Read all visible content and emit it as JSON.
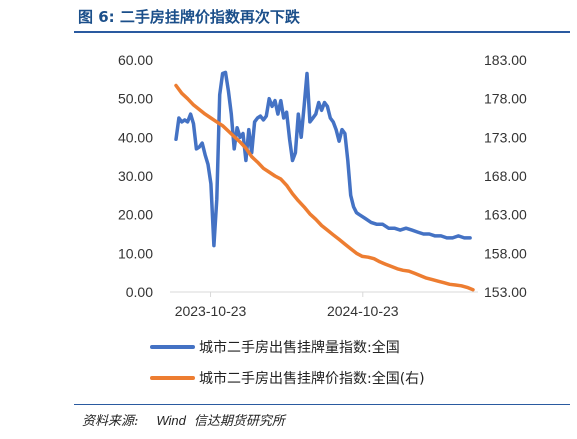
{
  "title": "图 6:  二手房挂牌价指数再次下跌",
  "source": {
    "label": "资料来源:",
    "provider": "Wind",
    "org": "信达期货研究所"
  },
  "chart_data": {
    "type": "line",
    "x_range": [
      "2023-08-01",
      "2025-07-15"
    ],
    "x_ticks": [
      "2023-10-23",
      "2024-10-23"
    ],
    "y_left": {
      "range": [
        0,
        60
      ],
      "ticks": [
        "0.00",
        "10.00",
        "20.00",
        "30.00",
        "40.00",
        "50.00",
        "60.00"
      ]
    },
    "y_right": {
      "range": [
        153,
        183
      ],
      "ticks": [
        "153.00",
        "158.00",
        "163.00",
        "168.00",
        "173.00",
        "178.00",
        "183.00"
      ]
    },
    "grid": false,
    "legend_position": "bottom",
    "series": [
      {
        "name": "城市二手房出售挂牌量指数:全国",
        "axis": "left",
        "color": "#4472c4",
        "points": [
          [
            "2023-08-01",
            39.5
          ],
          [
            "2023-08-08",
            45
          ],
          [
            "2023-08-15",
            44
          ],
          [
            "2023-08-22",
            44.5
          ],
          [
            "2023-08-29",
            44
          ],
          [
            "2023-09-05",
            46
          ],
          [
            "2023-09-12",
            43.5
          ],
          [
            "2023-09-19",
            37
          ],
          [
            "2023-09-26",
            37.5
          ],
          [
            "2023-10-03",
            38.5
          ],
          [
            "2023-10-10",
            35.5
          ],
          [
            "2023-10-17",
            33
          ],
          [
            "2023-10-24",
            28
          ],
          [
            "2023-10-31",
            12
          ],
          [
            "2023-11-07",
            24
          ],
          [
            "2023-11-14",
            51
          ],
          [
            "2023-11-21",
            56.5
          ],
          [
            "2023-11-28",
            56.8
          ],
          [
            "2023-12-05",
            52
          ],
          [
            "2023-12-12",
            46
          ],
          [
            "2023-12-19",
            37
          ],
          [
            "2023-12-26",
            42.5
          ],
          [
            "2024-01-02",
            40
          ],
          [
            "2024-01-09",
            41
          ],
          [
            "2024-01-16",
            34
          ],
          [
            "2024-01-23",
            42
          ],
          [
            "2024-01-30",
            36
          ],
          [
            "2024-02-06",
            44
          ],
          [
            "2024-02-13",
            45
          ],
          [
            "2024-02-20",
            45.5
          ],
          [
            "2024-02-27",
            44.5
          ],
          [
            "2024-03-05",
            45.5
          ],
          [
            "2024-03-12",
            50
          ],
          [
            "2024-03-19",
            48
          ],
          [
            "2024-03-26",
            49.5
          ],
          [
            "2024-04-02",
            46
          ],
          [
            "2024-04-09",
            49.5
          ],
          [
            "2024-04-16",
            45
          ],
          [
            "2024-04-23",
            46.5
          ],
          [
            "2024-04-30",
            39.5
          ],
          [
            "2024-05-07",
            34
          ],
          [
            "2024-05-14",
            36
          ],
          [
            "2024-05-21",
            46
          ],
          [
            "2024-05-28",
            40
          ],
          [
            "2024-06-04",
            48
          ],
          [
            "2024-06-11",
            56.5
          ],
          [
            "2024-06-18",
            44
          ],
          [
            "2024-06-25",
            45
          ],
          [
            "2024-07-02",
            46
          ],
          [
            "2024-07-09",
            49
          ],
          [
            "2024-07-16",
            47
          ],
          [
            "2024-07-23",
            49
          ],
          [
            "2024-07-30",
            48
          ],
          [
            "2024-08-06",
            45
          ],
          [
            "2024-08-13",
            44
          ],
          [
            "2024-08-20",
            42
          ],
          [
            "2024-08-27",
            39
          ],
          [
            "2024-09-03",
            42
          ],
          [
            "2024-09-10",
            41
          ],
          [
            "2024-09-17",
            34
          ],
          [
            "2024-09-24",
            25
          ],
          [
            "2024-10-01",
            22
          ],
          [
            "2024-10-08",
            20.5
          ],
          [
            "2024-10-15",
            20
          ],
          [
            "2024-10-29",
            19
          ],
          [
            "2024-11-12",
            18
          ],
          [
            "2024-11-26",
            17.5
          ],
          [
            "2024-12-10",
            17.5
          ],
          [
            "2024-12-24",
            16.5
          ],
          [
            "2025-01-07",
            16.5
          ],
          [
            "2025-01-21",
            16
          ],
          [
            "2025-02-04",
            16.5
          ],
          [
            "2025-02-18",
            16
          ],
          [
            "2025-03-04",
            15.5
          ],
          [
            "2025-03-18",
            15
          ],
          [
            "2025-04-01",
            15
          ],
          [
            "2025-04-15",
            14.5
          ],
          [
            "2025-04-29",
            14.5
          ],
          [
            "2025-05-13",
            14
          ],
          [
            "2025-05-27",
            14
          ],
          [
            "2025-06-10",
            14.5
          ],
          [
            "2025-06-24",
            14
          ],
          [
            "2025-07-08",
            14
          ]
        ]
      },
      {
        "name": "城市二手房出售挂牌价指数:全国(右)",
        "axis": "right",
        "color": "#ed7d31",
        "points": [
          [
            "2023-08-01",
            179.7
          ],
          [
            "2023-08-15",
            178.7
          ],
          [
            "2023-08-29",
            178.0
          ],
          [
            "2023-09-12",
            177.2
          ],
          [
            "2023-09-26",
            176.6
          ],
          [
            "2023-10-10",
            176.0
          ],
          [
            "2023-10-24",
            175.5
          ],
          [
            "2023-11-07",
            175.0
          ],
          [
            "2023-11-21",
            174.5
          ],
          [
            "2023-12-05",
            173.8
          ],
          [
            "2023-12-19",
            173.1
          ],
          [
            "2024-01-02",
            172.4
          ],
          [
            "2024-01-16",
            171.6
          ],
          [
            "2024-01-30",
            170.5
          ],
          [
            "2024-02-13",
            169.8
          ],
          [
            "2024-02-27",
            169.0
          ],
          [
            "2024-03-12",
            168.5
          ],
          [
            "2024-03-26",
            168.0
          ],
          [
            "2024-04-09",
            167.6
          ],
          [
            "2024-04-23",
            166.8
          ],
          [
            "2024-05-07",
            165.7
          ],
          [
            "2024-05-21",
            164.8
          ],
          [
            "2024-06-04",
            164.0
          ],
          [
            "2024-06-18",
            163.1
          ],
          [
            "2024-07-02",
            162.4
          ],
          [
            "2024-07-16",
            161.6
          ],
          [
            "2024-07-30",
            161.0
          ],
          [
            "2024-08-13",
            160.4
          ],
          [
            "2024-08-27",
            159.8
          ],
          [
            "2024-09-10",
            159.2
          ],
          [
            "2024-09-24",
            158.6
          ],
          [
            "2024-10-08",
            158.0
          ],
          [
            "2024-10-22",
            157.6
          ],
          [
            "2024-11-05",
            157.5
          ],
          [
            "2024-11-19",
            157.3
          ],
          [
            "2024-12-03",
            156.9
          ],
          [
            "2024-12-17",
            156.6
          ],
          [
            "2024-12-31",
            156.3
          ],
          [
            "2025-01-14",
            156.0
          ],
          [
            "2025-01-28",
            155.8
          ],
          [
            "2025-02-11",
            155.7
          ],
          [
            "2025-02-25",
            155.4
          ],
          [
            "2025-03-11",
            155.1
          ],
          [
            "2025-03-25",
            154.8
          ],
          [
            "2025-04-08",
            154.6
          ],
          [
            "2025-04-22",
            154.4
          ],
          [
            "2025-05-06",
            154.2
          ],
          [
            "2025-05-20",
            154.0
          ],
          [
            "2025-06-03",
            153.9
          ],
          [
            "2025-06-17",
            153.8
          ],
          [
            "2025-07-01",
            153.6
          ],
          [
            "2025-07-15",
            153.3
          ]
        ]
      }
    ]
  }
}
